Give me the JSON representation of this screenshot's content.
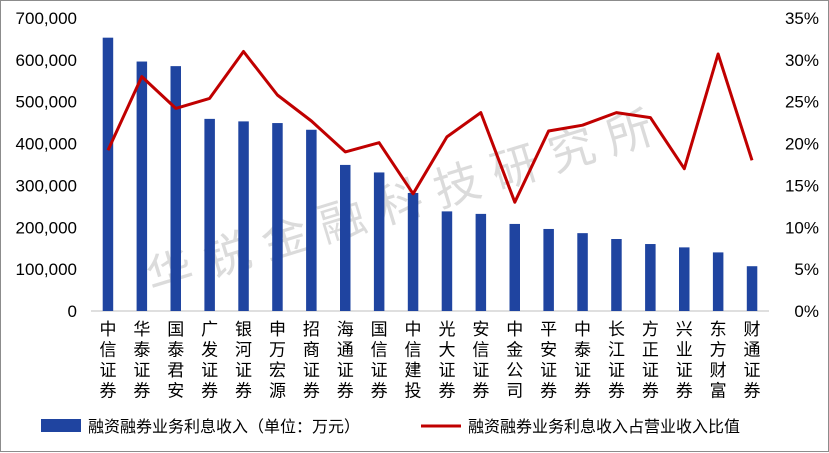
{
  "watermark": "华锐金融科技研究所",
  "colors": {
    "bar": "#1f44a0",
    "line": "#c00000",
    "axis": "#bfbfbf"
  },
  "legend": {
    "bar_label": "融资融券业务利息收入（单位：万元）",
    "line_label": "融资融券业务利息收入占营业收入比值"
  },
  "chart_data": {
    "type": "bar",
    "categories": [
      "中信证券",
      "华泰证券",
      "国泰君安",
      "广发证券",
      "银河证券",
      "申万宏源",
      "招商证券",
      "海通证券",
      "国信证券",
      "中信建投",
      "光大证券",
      "安信证券",
      "中金公司",
      "平安证券",
      "中泰证券",
      "长江证券",
      "方正证券",
      "兴业证券",
      "东方财富",
      "财通证券"
    ],
    "series": [
      {
        "name": "融资融券业务利息收入（单位：万元）",
        "type": "bar",
        "axis": "left",
        "values": [
          653000,
          596000,
          585000,
          459000,
          453000,
          449000,
          433000,
          349000,
          331000,
          282000,
          238000,
          232000,
          208000,
          196000,
          186000,
          172000,
          160000,
          152000,
          140000,
          107000
        ]
      },
      {
        "name": "融资融券业务利息收入占营业收入比值",
        "type": "line",
        "axis": "right",
        "values": [
          0.192,
          0.28,
          0.242,
          0.254,
          0.31,
          0.258,
          0.227,
          0.19,
          0.201,
          0.14,
          0.208,
          0.237,
          0.13,
          0.215,
          0.222,
          0.237,
          0.231,
          0.17,
          0.307,
          0.18
        ]
      }
    ],
    "ylim_left": [
      0,
      700000
    ],
    "yticks_left": [
      "0",
      "100,000",
      "200,000",
      "300,000",
      "400,000",
      "500,000",
      "600,000",
      "700,000"
    ],
    "ylim_right": [
      0,
      0.35
    ],
    "yticks_right": [
      "0%",
      "5%",
      "10%",
      "15%",
      "20%",
      "25%",
      "30%",
      "35%"
    ],
    "legend_position": "bottom",
    "grid": false
  }
}
